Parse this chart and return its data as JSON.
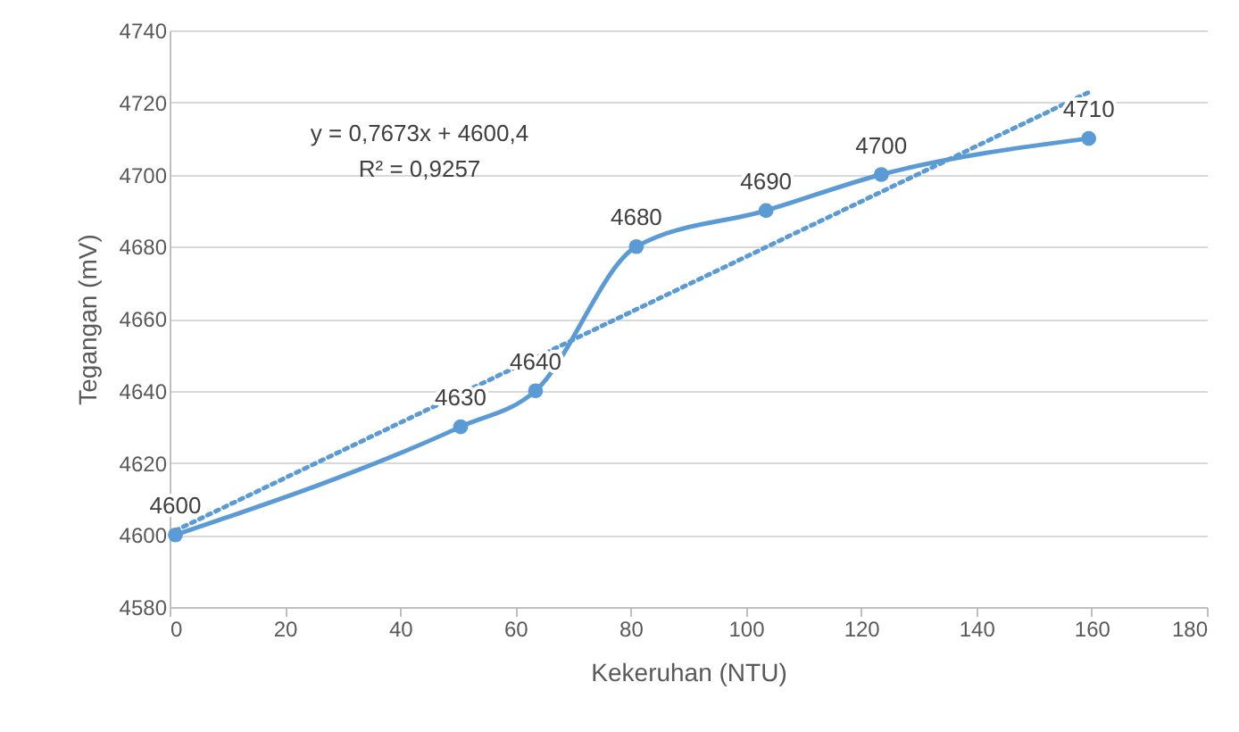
{
  "chart_data": {
    "type": "line",
    "xlabel": "Kekeruhan (NTU)",
    "ylabel": "Tegangan (mV)",
    "x": [
      1,
      50.5,
      63.5,
      81,
      103.5,
      123.5,
      159.5
    ],
    "series": [
      {
        "color": "#5b9bd5",
        "values": [
          4600,
          4630,
          4640,
          4680,
          4690,
          4700,
          4710
        ],
        "marker": "circle",
        "line_style": "solid",
        "value_labels": [
          "4600",
          "4630",
          "4640",
          "4680",
          "4690",
          "4700",
          "4710"
        ]
      },
      {
        "type": "line",
        "x": [
          1,
          160
        ],
        "color": "#5b9bd5",
        "values": [
          4601.2,
          4723.2
        ],
        "marker": "none",
        "line_style": "dotted"
      }
    ],
    "annotations": [
      "y = 0,7673x + 4600,4",
      "R² = 0,9257"
    ],
    "xlim": [
      0,
      180
    ],
    "xticks": [
      0,
      20,
      40,
      60,
      80,
      100,
      120,
      140,
      160,
      180
    ],
    "ylim": [
      4580,
      4740
    ],
    "yticks": [
      4580,
      4600,
      4620,
      4640,
      4660,
      4680,
      4700,
      4720,
      4740
    ],
    "grid": "y"
  }
}
